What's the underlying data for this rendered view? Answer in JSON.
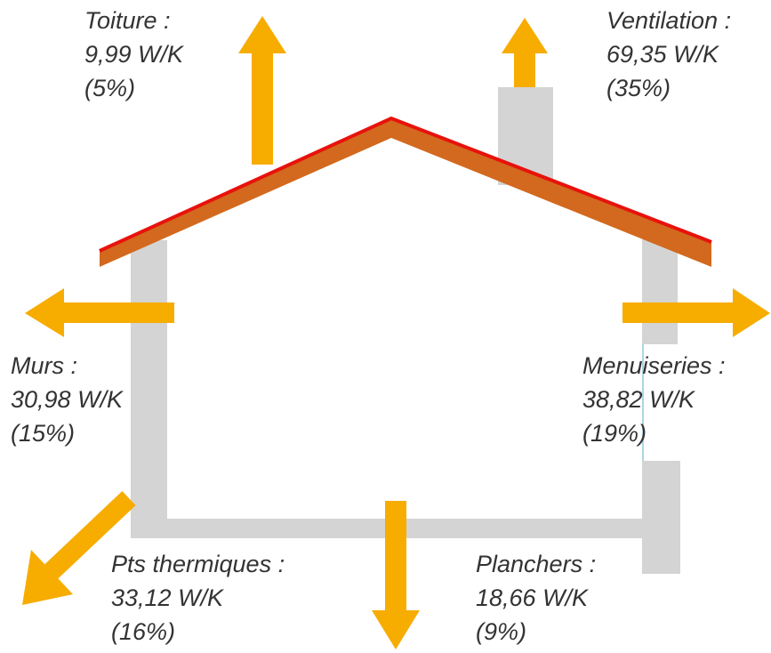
{
  "losses": [
    {
      "label": "Toiture :",
      "value": "9,99 W/K",
      "share": "(5%)"
    },
    {
      "label": "Ventilation :",
      "value": "69,35 W/K",
      "share": "(35%)"
    },
    {
      "label": "Murs :",
      "value": "30,98 W/K",
      "share": "(15%)"
    },
    {
      "label": "Menuiseries :",
      "value": "38,82 W/K",
      "share": "(19%)"
    },
    {
      "label": "Pts thermiques :",
      "value": "33,12 W/K",
      "share": "(16%)"
    },
    {
      "label": "Planchers :",
      "value": "18,66 W/K",
      "share": "(9%)"
    }
  ]
}
